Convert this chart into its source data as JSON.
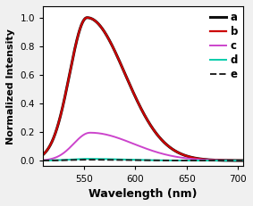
{
  "xlim": [
    510,
    705
  ],
  "ylim": [
    -0.04,
    1.08
  ],
  "xlabel": "Wavelength (nm)",
  "ylabel": "Normalized Intensity",
  "yticks": [
    0.0,
    0.2,
    0.4,
    0.6,
    0.8,
    1.0
  ],
  "xticks": [
    550,
    600,
    650,
    700
  ],
  "background_color": "#f0f0f0",
  "plot_bg_color": "#ffffff",
  "series": [
    {
      "label": "a",
      "color": "#111111",
      "linestyle": "solid",
      "linewidth": 2.2,
      "peak": 553,
      "peak_val": 1.0,
      "sigma1": 17,
      "sigma2": 37
    },
    {
      "label": "b",
      "color": "#cc0000",
      "linestyle": "solid",
      "linewidth": 1.6,
      "peak": 553,
      "peak_val": 1.0,
      "sigma1": 17,
      "sigma2": 37
    },
    {
      "label": "c",
      "color": "#cc44cc",
      "linestyle": "solid",
      "linewidth": 1.4,
      "peak": 556,
      "peak_val": 0.195,
      "sigma1": 16,
      "sigma2": 42
    },
    {
      "label": "d",
      "color": "#00ccaa",
      "linestyle": "solid",
      "linewidth": 1.4,
      "peak": 553,
      "peak_val": 0.012,
      "sigma1": 17,
      "sigma2": 37
    },
    {
      "label": "e",
      "color": "#222222",
      "linestyle": "dashed",
      "linewidth": 1.4,
      "peak": 553,
      "peak_val": 0.006,
      "sigma1": 17,
      "sigma2": 37
    }
  ],
  "legend_fontsize": 8.5,
  "axis_fontsize": 8,
  "tick_fontsize": 7.5,
  "xlabel_fontsize": 9,
  "ylabel_fontsize": 8
}
